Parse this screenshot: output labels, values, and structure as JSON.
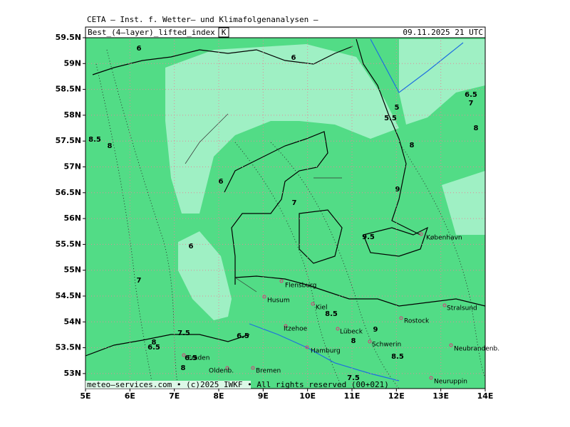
{
  "header": {
    "institute": "CETA – Inst. f. Wetter– und Klimafolgenanalysen –",
    "field": "Best_(4–layer)_lifted_index",
    "unit": "K",
    "valid_time": "09.11.2025 21 UTC"
  },
  "axes": {
    "y_labels": [
      "59.5N",
      "59N",
      "58.5N",
      "58N",
      "57.5N",
      "57N",
      "56.5N",
      "56N",
      "55.5N",
      "55N",
      "54.5N",
      "54N",
      "53.5N",
      "53N"
    ],
    "x_labels": [
      "5E",
      "6E",
      "7E",
      "8E",
      "9E",
      "10E",
      "11E",
      "12E",
      "13E",
      "14E"
    ]
  },
  "contour_labels": [
    "6",
    "6",
    "5",
    "5.5",
    "6.5",
    "7",
    "8",
    "8.5",
    "8",
    "8",
    "6",
    "9",
    "7",
    "9.5",
    "6",
    "7",
    "8.5",
    "9",
    "7.5",
    "6.5",
    "8",
    "6.5",
    "8",
    "6.5",
    "8.5",
    "8",
    "7.5"
  ],
  "cities": [
    "København",
    "Flensburg",
    "Husum",
    "Kiel",
    "Itzehoe",
    "Lübeck",
    "Rostock",
    "Stralsund",
    "Schwerin",
    "Hamburg",
    "Neubrandenb.",
    "Emden",
    "Oldenb.",
    "Bremen",
    "Neuruppin"
  ],
  "footer": "meteo–services.com • (c)2025 IWKF • All rights reserved (00+021)"
}
